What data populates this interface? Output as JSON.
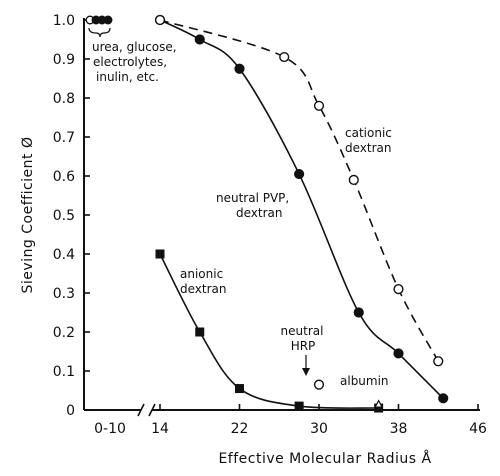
{
  "chart_data": {
    "type": "line",
    "xlabel": "Effective Molecular Radius Å",
    "ylabel": "Sieving Coefficient Ø",
    "ylim": [
      0,
      1.0
    ],
    "yticks": [
      {
        "value": 0,
        "label": "0"
      },
      {
        "value": 0.1,
        "label": "0.1"
      },
      {
        "value": 0.2,
        "label": "0.2"
      },
      {
        "value": 0.3,
        "label": "0.3"
      },
      {
        "value": 0.4,
        "label": "0.4"
      },
      {
        "value": 0.5,
        "label": "0.5"
      },
      {
        "value": 0.6,
        "label": "0.6"
      },
      {
        "value": 0.7,
        "label": "0.7"
      },
      {
        "value": 0.8,
        "label": "0.8"
      },
      {
        "value": 0.9,
        "label": "0.9"
      },
      {
        "value": 1.0,
        "label": "1.0"
      }
    ],
    "xlim": [
      14,
      46
    ],
    "xticks": [
      {
        "value": 14,
        "label": "14"
      },
      {
        "value": 22,
        "label": "22"
      },
      {
        "value": 30,
        "label": "30"
      },
      {
        "value": 38,
        "label": "38"
      },
      {
        "value": 46,
        "label": "46"
      }
    ],
    "small_molecules": {
      "range_label": "0-10",
      "values": [
        1.0,
        1.0,
        1.0,
        1.0
      ],
      "annotation": [
        "urea, glucose,",
        "electrolytes,",
        "inulin, etc."
      ]
    },
    "series": [
      {
        "label": [
          "neutral PVP,",
          "dextran"
        ],
        "marker": "filled-circle",
        "line": "solid",
        "x": [
          14,
          18,
          22,
          28,
          34,
          38,
          42.5
        ],
        "y": [
          1.0,
          0.95,
          0.875,
          0.605,
          0.25,
          0.145,
          0.03
        ]
      },
      {
        "label": [
          "cationic",
          "dextran"
        ],
        "marker": "open-circle",
        "line": "dashed",
        "x": [
          14,
          26.5,
          30,
          33.5,
          38,
          42
        ],
        "y": [
          1.0,
          0.905,
          0.78,
          0.59,
          0.31,
          0.125
        ]
      },
      {
        "label": [
          "anionic",
          "dextran"
        ],
        "marker": "filled-square",
        "line": "solid",
        "x": [
          14,
          18,
          22,
          28,
          36
        ],
        "y": [
          0.4,
          0.2,
          0.055,
          0.01,
          0.005
        ]
      }
    ],
    "points": [
      {
        "label": [
          "neutral",
          "HRP"
        ],
        "marker": "open-circle",
        "x": 30,
        "y": 0.065
      },
      {
        "label": [
          "albumin"
        ],
        "marker": "open-triangle",
        "x": 36,
        "y": 0.015
      }
    ]
  }
}
